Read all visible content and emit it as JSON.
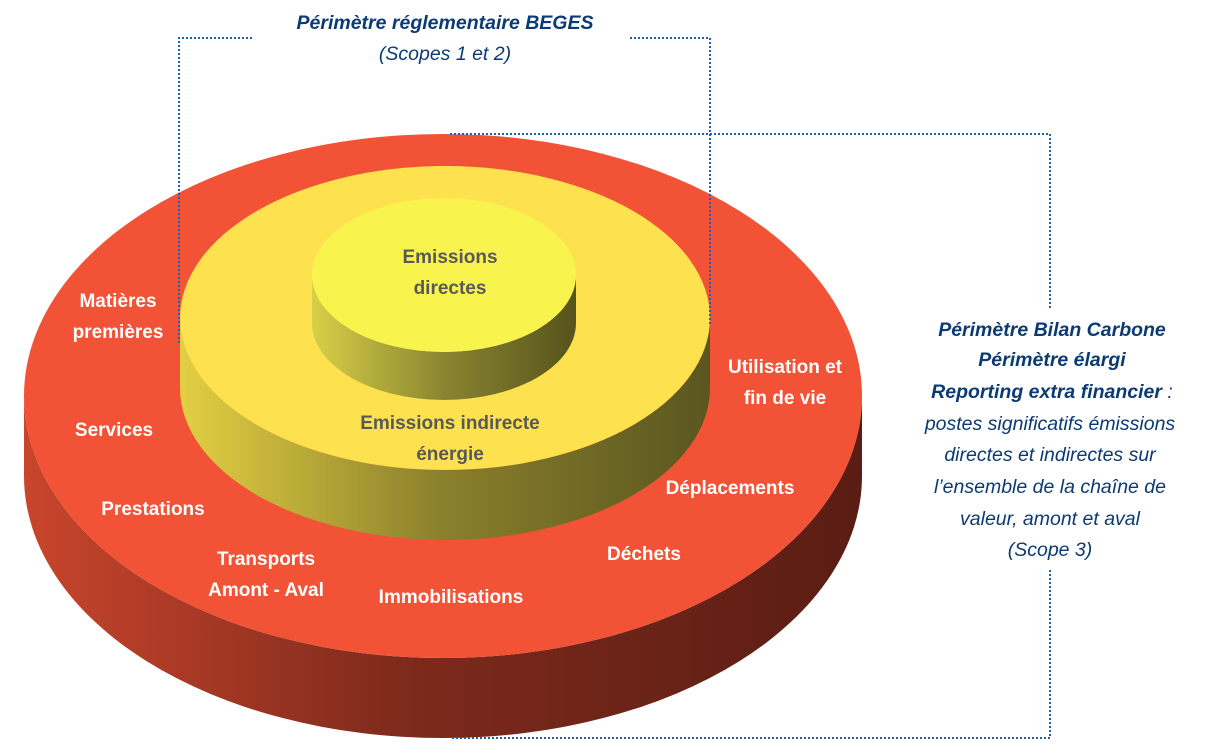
{
  "colors": {
    "outer_ring": "#f25235",
    "middle_ring": "#fde14e",
    "inner_disk": "#f9f34e",
    "annotation_text": "#0b3a74",
    "core_text": "#595959"
  },
  "top_annotation": {
    "title": "Périmètre réglementaire BEGES",
    "subtitle": "(Scopes 1 et 2)"
  },
  "right_annotation": {
    "line1": "Périmètre Bilan Carbone",
    "line2": "Périmètre élargi",
    "line3": "Reporting extra financier",
    "line3_suffix": " :",
    "body": [
      "postes significatifs émissions",
      "directes et indirectes sur",
      "l’ensemble de la chaîne de",
      "valeur, amont et aval",
      "(Scope 3)"
    ]
  },
  "inner": {
    "line1": "Emissions",
    "line2": "directes"
  },
  "middle": {
    "line1": "Emissions indirecte",
    "line2": "énergie"
  },
  "outer_labels": {
    "matieres": [
      "Matières",
      "premières"
    ],
    "services": "Services",
    "prestations": "Prestations",
    "transports": [
      "Transports",
      "Amont - Aval"
    ],
    "immobilisations": "Immobilisations",
    "dechets": "Déchets",
    "deplacements": "Déplacements",
    "utilisation": [
      "Utilisation et",
      "fin de vie"
    ]
  }
}
